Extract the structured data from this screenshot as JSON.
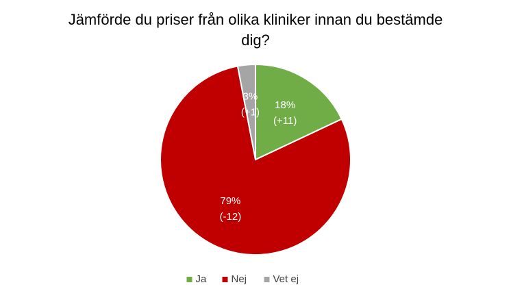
{
  "chart_data": {
    "type": "pie",
    "title": "Jämförde du priser från olika kliniker innan du bestämde dig?",
    "categories": [
      "Ja",
      "Nej",
      "Vet ej"
    ],
    "values": [
      18,
      79,
      3
    ],
    "value_labels": [
      "18%",
      "79%",
      "3%"
    ],
    "changes": [
      11,
      -12,
      1
    ],
    "change_labels": [
      "(+11)",
      "(-12)",
      "(+1)"
    ],
    "colors": [
      "#70ad47",
      "#c00000",
      "#a5a5a5"
    ],
    "legend": "bottom"
  }
}
